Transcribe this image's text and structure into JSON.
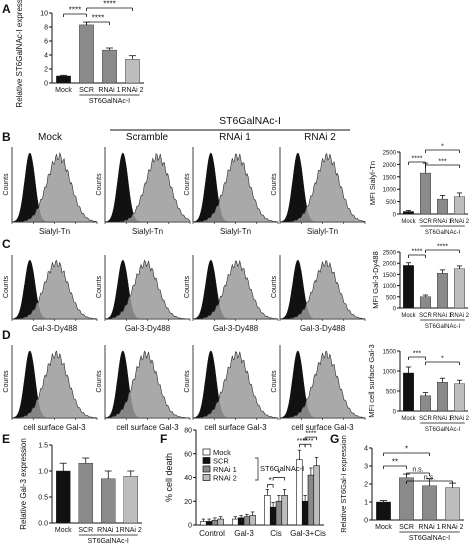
{
  "colors": {
    "black": "#111111",
    "dark": "#4a4a4a",
    "mid": "#8a8a8a",
    "light": "#bdbdbd",
    "hist_outline": "#2a2a2a"
  },
  "panel_a": {
    "letter": "A",
    "ylabel": "Relative ST6GalNAc-I expression",
    "categories": [
      "Mock",
      "SCR",
      "RNAi 1",
      "RNAi 2"
    ],
    "values": [
      1.0,
      8.3,
      4.7,
      3.4
    ],
    "errors": [
      0.1,
      0.4,
      0.3,
      0.5
    ],
    "ylim": [
      0,
      10
    ],
    "yticks": [
      "0",
      "2",
      "4",
      "6",
      "8",
      "10"
    ],
    "group_label": "ST6GalNAc-I",
    "sig": [
      "****",
      "****",
      "****"
    ]
  },
  "flow": {
    "st6_header": "ST6GalNAc-I",
    "columns": [
      "Mock",
      "Scramble",
      "RNAi 1",
      "RNAi 2"
    ],
    "counts_label": "Counts",
    "rows": [
      {
        "letter": "B",
        "xlabel": "Sialyl-Tn",
        "mode": "right"
      },
      {
        "letter": "C",
        "xlabel": "Gal-3-Dy488",
        "mode": "right"
      },
      {
        "letter": "D",
        "xlabel": "cell surface Gal-3",
        "mode": "right"
      }
    ]
  },
  "panel_b_bar": {
    "ylabel": "MFI Sialyl-Tn",
    "categories": [
      "Mock",
      "SCR",
      "RNAi 1",
      "RNAi 2"
    ],
    "values": [
      100,
      1650,
      600,
      700
    ],
    "errors": [
      40,
      400,
      150,
      150
    ],
    "ylim": [
      0,
      2500
    ],
    "yticks": [
      "0",
      "500",
      "1000",
      "1500",
      "2000",
      "2500"
    ],
    "group_label": "ST6GalNAc-I",
    "sig": [
      "****",
      "***",
      "*"
    ]
  },
  "panel_c_bar": {
    "ylabel": "MFI Gal-3-Dy488",
    "categories": [
      "Mock",
      "SCR",
      "RNAi 1",
      "RNAi 2"
    ],
    "values": [
      1900,
      500,
      1550,
      1750
    ],
    "errors": [
      120,
      80,
      150,
      130
    ],
    "ylim": [
      0,
      2500
    ],
    "yticks": [
      "0",
      "500",
      "1000",
      "1500",
      "2000",
      "2500"
    ],
    "group_label": "ST6GalNAc-I",
    "sig": [
      "****",
      "****"
    ]
  },
  "panel_d_bar": {
    "ylabel": "MFI cell surface Gal-3",
    "categories": [
      "Mock",
      "SCR",
      "RNAi 1",
      "RNAi 2"
    ],
    "values": [
      950,
      380,
      720,
      680
    ],
    "errors": [
      150,
      80,
      100,
      90
    ],
    "ylim": [
      0,
      1500
    ],
    "yticks": [
      "0",
      "500",
      "1000",
      "1500"
    ],
    "group_label": "ST6GalNAc-I",
    "sig": [
      "***",
      "*"
    ]
  },
  "panel_e": {
    "letter": "E",
    "ylabel": "Relative Gal-3 expression",
    "categories": [
      "Mock",
      "SCR",
      "RNAi 1",
      "RNAi 2"
    ],
    "values": [
      1.0,
      1.15,
      0.85,
      0.9
    ],
    "errors": [
      0.15,
      0.1,
      0.15,
      0.1
    ],
    "ylim": [
      0,
      1.5
    ],
    "yticks": [
      "0.0",
      "0.5",
      "1.0",
      "1.5"
    ],
    "group_label": "ST6GalNAc-I"
  },
  "panel_f": {
    "letter": "F",
    "ylabel": "% cell death",
    "groups": [
      "Control",
      "Gal-3",
      "Cis",
      "Gal-3+Cis"
    ],
    "series": [
      {
        "name": "Mock",
        "values": [
          3,
          5,
          25,
          55
        ],
        "errors": [
          2,
          2,
          5,
          8
        ]
      },
      {
        "name": "SCR",
        "values": [
          3,
          6,
          15,
          20
        ],
        "errors": [
          2,
          2,
          4,
          5
        ]
      },
      {
        "name": "RNAi 1",
        "values": [
          4,
          7,
          20,
          42
        ],
        "errors": [
          2,
          2,
          5,
          6
        ]
      },
      {
        "name": "RNAi 2",
        "values": [
          5,
          8,
          25,
          50
        ],
        "errors": [
          2,
          3,
          5,
          7
        ]
      }
    ],
    "legend_group": "ST6GalNAc-I",
    "ylim": [
      0,
      80
    ],
    "yticks": [
      "0",
      "20",
      "40",
      "60",
      "80"
    ],
    "sig_cis": [
      "*",
      "*"
    ],
    "sig_g3cis": [
      "****",
      "****",
      "****"
    ]
  },
  "panel_g": {
    "letter": "G",
    "ylabel": "Relative ST6Gal-I expression",
    "categories": [
      "Mock",
      "SCR",
      "RNAi 1",
      "RNAi 2"
    ],
    "values": [
      1.0,
      2.35,
      1.9,
      1.8
    ],
    "errors": [
      0.08,
      0.2,
      0.4,
      0.25
    ],
    "ylim": [
      0,
      4
    ],
    "yticks": [
      "0",
      "1",
      "2",
      "3",
      "4"
    ],
    "group_label": "ST6GalNAc-I",
    "sig": [
      "**",
      "*",
      "n.s.",
      "n.s."
    ]
  }
}
